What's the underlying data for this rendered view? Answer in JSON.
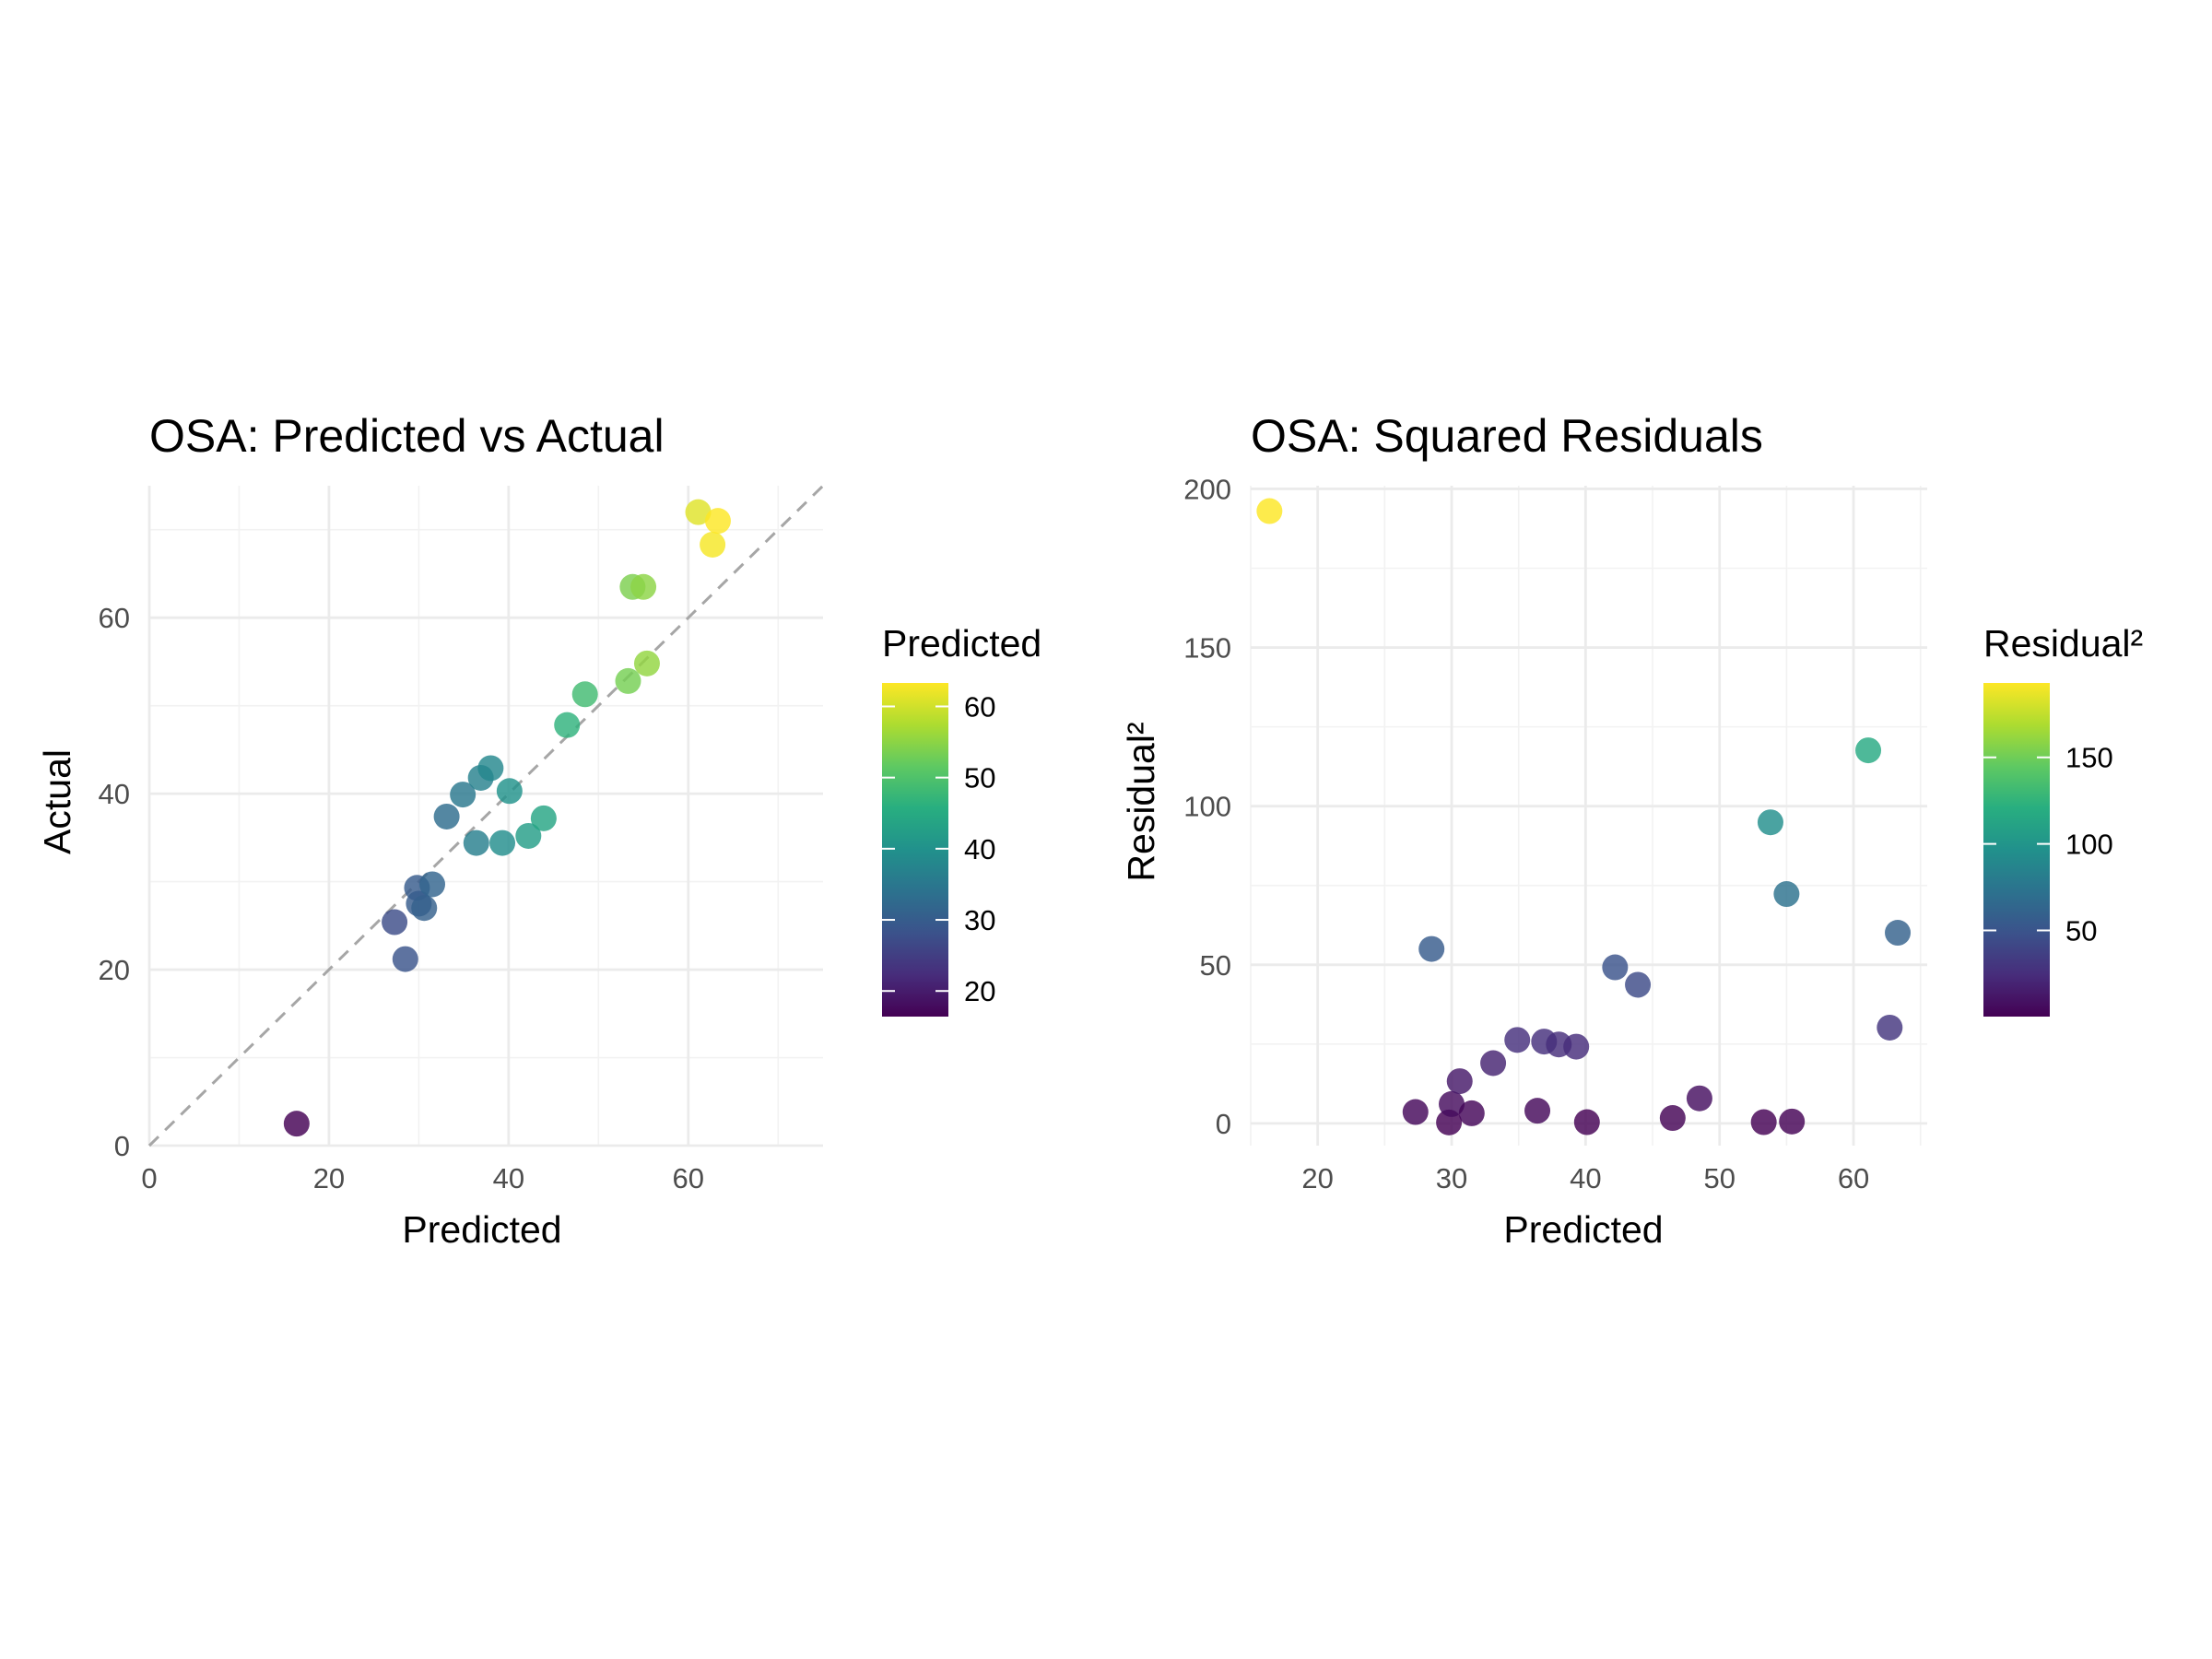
{
  "chart_data": [
    {
      "type": "scatter",
      "title": "OSA: Predicted vs Actual",
      "xlabel": "Predicted",
      "ylabel": "Actual",
      "xlim": [
        0,
        75
      ],
      "ylim": [
        0,
        75
      ],
      "xticks": [
        0,
        20,
        40,
        60
      ],
      "yticks": [
        0,
        20,
        40,
        60
      ],
      "reference_line": "y = x (dashed grey)",
      "color_scale": "viridis",
      "color_by": "x",
      "legend": {
        "title": "Predicted",
        "ticks": [
          20,
          30,
          40,
          50,
          60
        ],
        "range": [
          16.4,
          63.3
        ],
        "position": "right"
      },
      "grid": true,
      "x": [
        16.4,
        27.3,
        28.5,
        29.8,
        30.0,
        30.6,
        31.5,
        33.1,
        34.9,
        36.4,
        36.9,
        38.0,
        39.3,
        40.1,
        42.2,
        43.9,
        46.5,
        48.5,
        53.3,
        53.8,
        55.0,
        55.4,
        61.1,
        62.7,
        63.3
      ],
      "y": [
        2.5,
        25.4,
        21.2,
        29.3,
        27.5,
        27.0,
        29.7,
        37.4,
        39.9,
        34.4,
        41.8,
        42.9,
        34.4,
        40.3,
        35.2,
        37.2,
        47.8,
        51.3,
        52.8,
        63.5,
        63.5,
        54.8,
        72.0,
        68.3,
        71.0
      ]
    },
    {
      "type": "scatter",
      "title": "OSA: Squared Residuals",
      "xlabel": "Predicted",
      "ylabel": "Residual²",
      "xlim": [
        15,
        65.5
      ],
      "ylim": [
        -7,
        201
      ],
      "xticks": [
        20,
        30,
        40,
        50,
        60
      ],
      "yticks": [
        0,
        50,
        100,
        150,
        200
      ],
      "color_scale": "viridis",
      "color_by": "y",
      "legend": {
        "title": "Residual²",
        "ticks": [
          50,
          100,
          150
        ],
        "range": [
          0.2,
          193
        ],
        "position": "right"
      },
      "grid": true,
      "x": [
        16.4,
        27.3,
        28.5,
        29.8,
        30.0,
        30.6,
        31.5,
        33.1,
        34.9,
        36.4,
        36.9,
        38.0,
        39.3,
        40.1,
        42.2,
        43.9,
        46.5,
        48.5,
        53.3,
        53.8,
        55.0,
        55.4,
        61.1,
        62.7,
        63.3
      ],
      "y": [
        193,
        3.6,
        55,
        0.3,
        6.1,
        13.3,
        3.2,
        19,
        26.3,
        4,
        25.8,
        24.9,
        24.2,
        0.4,
        49.2,
        43.7,
        1.7,
        7.9,
        0.4,
        94.9,
        72.3,
        0.6,
        117.6,
        30.2,
        60.1
      ]
    }
  ]
}
